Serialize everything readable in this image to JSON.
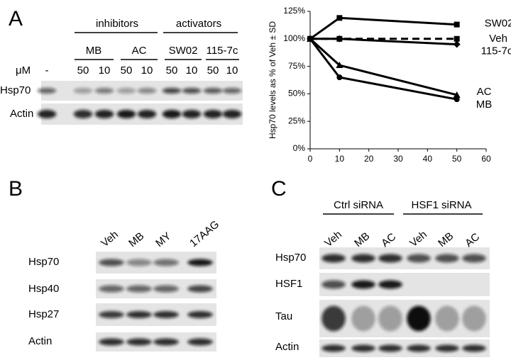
{
  "panel_a": {
    "letter": "A",
    "groups": [
      "inhibitors",
      "activators"
    ],
    "compounds": [
      "MB",
      "AC",
      "SW02",
      "115-7c"
    ],
    "conc_label": "μM",
    "lanes": [
      "-",
      "50",
      "10",
      "50",
      "10",
      "50",
      "10",
      "50",
      "10"
    ],
    "rows": [
      "Hsp70",
      "Actin"
    ]
  },
  "panel_b": {
    "letter": "B",
    "lanes": [
      "Veh",
      "MB",
      "MY",
      "17AAG"
    ],
    "rows": [
      "Hsp70",
      "Hsp40",
      "Hsp27",
      "Actin"
    ]
  },
  "panel_c": {
    "letter": "C",
    "groups": [
      "Ctrl siRNA",
      "HSF1 siRNA"
    ],
    "lanes": [
      "Veh",
      "MB",
      "AC",
      "Veh",
      "MB",
      "AC"
    ],
    "rows": [
      "Hsp70",
      "HSF1",
      "Tau",
      "Actin"
    ]
  },
  "chart_data": {
    "type": "line",
    "y_label": "Hsp70 levels as % of Veh ± SD",
    "x": [
      0,
      10,
      50
    ],
    "xlim": [
      0,
      60
    ],
    "xticks": [
      0,
      10,
      20,
      30,
      40,
      50,
      60
    ],
    "ylim": [
      0,
      125
    ],
    "yticks": [
      {
        "value": 0,
        "label": "0%"
      },
      {
        "value": 25,
        "label": "25%"
      },
      {
        "value": 50,
        "label": "50%"
      },
      {
        "value": 75,
        "label": "75%"
      },
      {
        "value": 100,
        "label": "100%"
      },
      {
        "value": 125,
        "label": "125%"
      }
    ],
    "series": [
      {
        "name": "SW02",
        "color": "#000000",
        "marker": "square",
        "values": [
          100,
          119,
          113
        ]
      },
      {
        "name": "Veh",
        "color": "#000000",
        "marker": "square",
        "linestyle": "dashed",
        "values": [
          100,
          100,
          100
        ]
      },
      {
        "name": "115-7c",
        "color": "#000000",
        "marker": "diamond",
        "values": [
          100,
          100,
          95
        ]
      },
      {
        "name": "AC",
        "color": "#000000",
        "marker": "triangle",
        "values": [
          100,
          76,
          49
        ]
      },
      {
        "name": "MB",
        "color": "#000000",
        "marker": "circle",
        "values": [
          100,
          65,
          45
        ]
      }
    ]
  }
}
